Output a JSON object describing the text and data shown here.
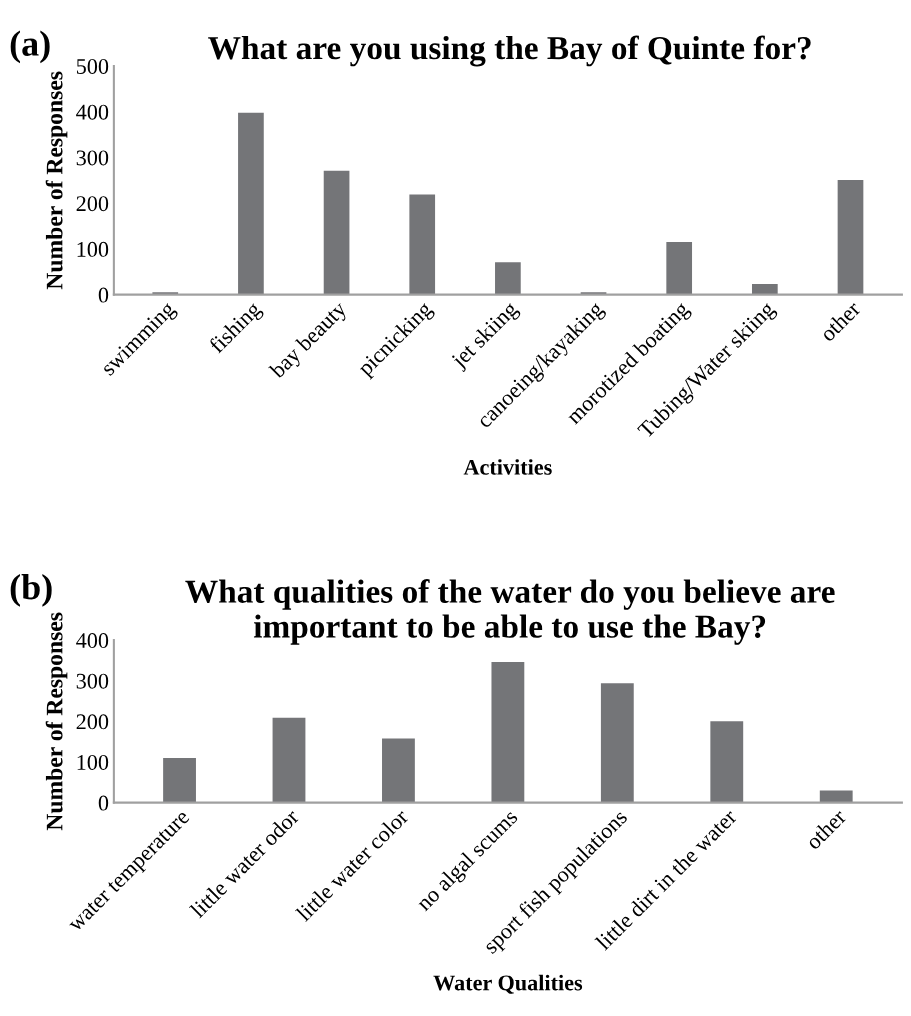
{
  "chart_data": [
    {
      "type": "bar",
      "title": "What are you using the Bay of Quinte for?",
      "xlabel": "Activities",
      "ylabel": "Number of Responses",
      "annotations": [
        "(a)"
      ],
      "categories": [
        "swimming",
        "fishing",
        "bay beauty",
        "picnicking",
        "jet skiing",
        "canoeing/kayaking",
        "morotized boating",
        "Tubing/Water skiing",
        "other"
      ],
      "values": [
        5,
        398,
        271,
        219,
        71,
        5,
        115,
        23,
        251
      ],
      "color": "#747578",
      "ylim": [
        0,
        500
      ],
      "yticks": [
        0,
        100,
        200,
        300,
        400,
        500
      ],
      "grid": false
    },
    {
      "type": "bar",
      "title": "What qualities of the water do you believe are important to be able to use the Bay?",
      "xlabel": "Water Qualities",
      "ylabel": "Number of Responses",
      "annotations": [
        "(b)"
      ],
      "categories": [
        "water temperature",
        "little water odor",
        "little water color",
        "no algal scums",
        "sport fish populations",
        "little dirt in the water",
        "other"
      ],
      "values": [
        110,
        209,
        158,
        346,
        294,
        200,
        30
      ],
      "color": "#747578",
      "ylim": [
        0,
        400
      ],
      "yticks": [
        0,
        100,
        200,
        300,
        400
      ],
      "grid": false
    }
  ]
}
